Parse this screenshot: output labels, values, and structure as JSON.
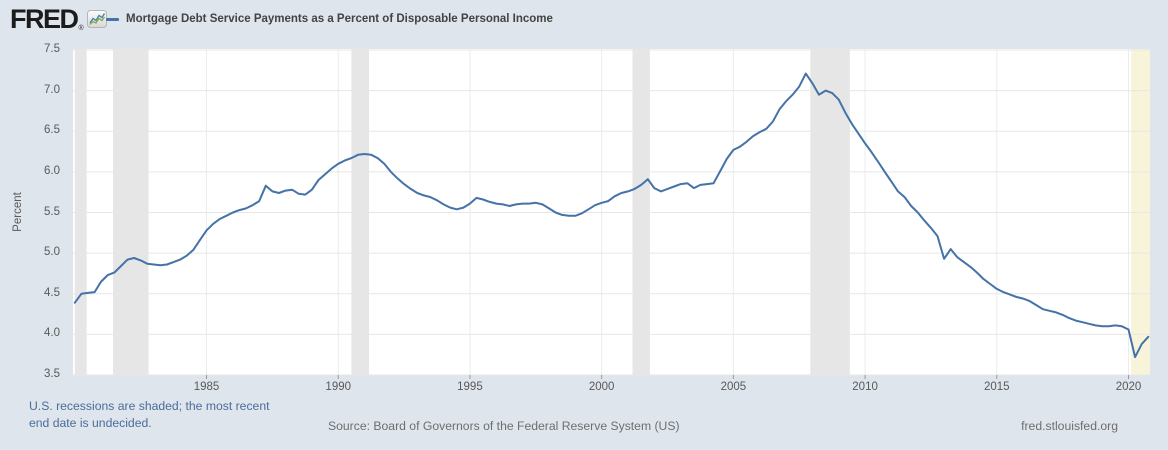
{
  "header": {
    "logo_text": "FRED",
    "registered_mark": "®"
  },
  "footer": {
    "recession_note_line1": "U.S. recessions are shaded; the most recent",
    "recession_note_line2": "end date is undecided.",
    "source": "Source: Board of Governors of the Federal Reserve System (US)",
    "site": "fred.stlouisfed.org"
  },
  "colors": {
    "page_background": "#dfe5ec",
    "plot_background": "#ffffff",
    "line": "#4572a7",
    "gridline": "#e7e7e7",
    "vertical_gridline": "#ececec",
    "recession_band": "#e6e6e6",
    "undecided_recession_band": "#f7f4da",
    "tick_mark": "#999999",
    "axis_text": "#595959",
    "title_text": "#434343",
    "note_link": "#4a6d9c",
    "source_text": "#6e6e6e",
    "logo_sparkline_blue": "#5b7ea6",
    "logo_sparkline_green": "#7fb254"
  },
  "chart_data": {
    "type": "line",
    "title": "Mortgage Debt Service Payments as a Percent of Disposable Personal Income",
    "ylabel": "Percent",
    "ylim": [
      3.5,
      7.5
    ],
    "xlim": [
      1980.0,
      2020.9
    ],
    "y_ticks": [
      3.5,
      4.0,
      4.5,
      5.0,
      5.5,
      6.0,
      6.5,
      7.0,
      7.5
    ],
    "x_ticks": [
      1985,
      1990,
      1995,
      2000,
      2005,
      2010,
      2015,
      2020
    ],
    "grid": "horizontal-on-faint-vertical-at-ticks",
    "legend_position": "top-header",
    "frequency": "quarterly",
    "x_start": 1980.0,
    "x_step": 0.25,
    "values": [
      4.39,
      4.5,
      4.51,
      4.52,
      4.65,
      4.73,
      4.76,
      4.84,
      4.92,
      4.94,
      4.91,
      4.87,
      4.86,
      4.85,
      4.86,
      4.89,
      4.92,
      4.97,
      5.04,
      5.16,
      5.28,
      5.36,
      5.42,
      5.46,
      5.5,
      5.53,
      5.55,
      5.59,
      5.64,
      5.83,
      5.76,
      5.74,
      5.77,
      5.78,
      5.73,
      5.72,
      5.78,
      5.9,
      5.97,
      6.04,
      6.1,
      6.14,
      6.17,
      6.21,
      6.22,
      6.21,
      6.17,
      6.1,
      6.0,
      5.92,
      5.85,
      5.79,
      5.74,
      5.71,
      5.69,
      5.65,
      5.6,
      5.56,
      5.54,
      5.56,
      5.61,
      5.68,
      5.66,
      5.63,
      5.61,
      5.6,
      5.58,
      5.6,
      5.61,
      5.61,
      5.62,
      5.6,
      5.55,
      5.5,
      5.47,
      5.46,
      5.46,
      5.49,
      5.54,
      5.59,
      5.62,
      5.64,
      5.7,
      5.74,
      5.76,
      5.79,
      5.84,
      5.91,
      5.8,
      5.76,
      5.79,
      5.82,
      5.85,
      5.86,
      5.8,
      5.84,
      5.85,
      5.86,
      6.01,
      6.16,
      6.27,
      6.31,
      6.37,
      6.44,
      6.49,
      6.53,
      6.62,
      6.77,
      6.87,
      6.95,
      7.05,
      7.21,
      7.09,
      6.95,
      7.0,
      6.97,
      6.89,
      6.73,
      6.59,
      6.47,
      6.35,
      6.24,
      6.12,
      6.0,
      5.88,
      5.76,
      5.69,
      5.58,
      5.5,
      5.4,
      5.31,
      5.21,
      4.93,
      5.05,
      4.95,
      4.89,
      4.83,
      4.76,
      4.68,
      4.62,
      4.56,
      4.52,
      4.49,
      4.46,
      4.44,
      4.41,
      4.36,
      4.31,
      4.29,
      4.27,
      4.24,
      4.2,
      4.17,
      4.15,
      4.13,
      4.11,
      4.1,
      4.1,
      4.11,
      4.1,
      4.06,
      3.72,
      3.88,
      3.97
    ],
    "recessions": [
      {
        "start": 1980.0,
        "end": 1980.45
      },
      {
        "start": 1981.45,
        "end": 1982.8
      },
      {
        "start": 1990.5,
        "end": 1991.17
      },
      {
        "start": 2001.17,
        "end": 2001.83
      },
      {
        "start": 2007.92,
        "end": 2009.42
      },
      {
        "start": 2020.1,
        "end": 2020.9,
        "undecided": true
      }
    ]
  }
}
